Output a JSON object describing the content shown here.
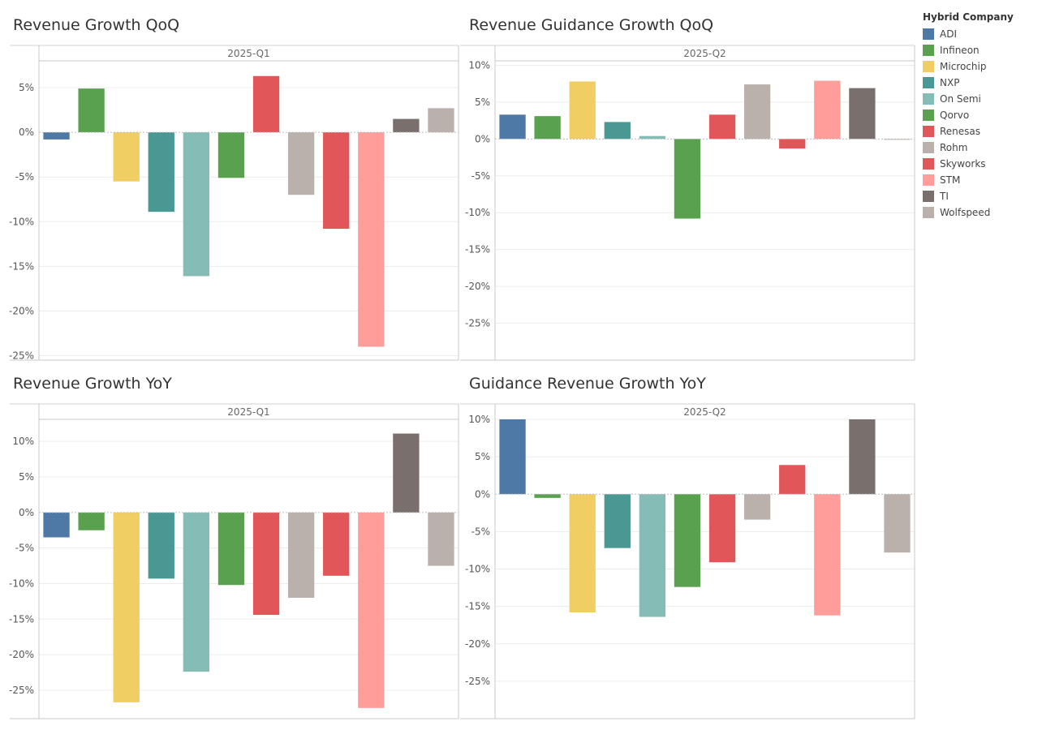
{
  "legend": {
    "title": "Hybrid Company",
    "items": [
      {
        "label": "ADI",
        "color": "#4e79a7"
      },
      {
        "label": "Infineon",
        "color": "#59a14f"
      },
      {
        "label": "Microchip",
        "color": "#f1ce63"
      },
      {
        "label": "NXP",
        "color": "#499894"
      },
      {
        "label": "On Semi",
        "color": "#86bcb6"
      },
      {
        "label": "Qorvo",
        "color": "#59a14f"
      },
      {
        "label": "Renesas",
        "color": "#e15759"
      },
      {
        "label": "Rohm",
        "color": "#bab0ac"
      },
      {
        "label": "Skyworks",
        "color": "#e15759"
      },
      {
        "label": "STM",
        "color": "#ff9d9a"
      },
      {
        "label": "TI",
        "color": "#79706e"
      },
      {
        "label": "Wolfspeed",
        "color": "#bab0ac"
      }
    ]
  },
  "chart_data": [
    {
      "type": "bar",
      "title": "Revenue Growth QoQ",
      "column_header": "2025-Q1",
      "categories": [
        "ADI",
        "Infineon",
        "Microchip",
        "NXP",
        "On Semi",
        "Qorvo",
        "Renesas",
        "Rohm",
        "Skyworks",
        "STM",
        "TI",
        "Wolfspeed"
      ],
      "values": [
        -0.8,
        4.9,
        -5.5,
        -8.9,
        -16.1,
        -5.1,
        6.3,
        -7.0,
        -10.8,
        -24.0,
        1.5,
        2.7
      ],
      "yticks": [
        5,
        0,
        -5,
        -10,
        -15,
        -20,
        -25
      ],
      "ytick_labels": [
        "5%",
        "0%",
        "-5%",
        "-10%",
        "-15%",
        "-20%",
        "-25%"
      ],
      "ylim": [
        -25.5,
        8.0
      ]
    },
    {
      "type": "bar",
      "title": "Revenue Guidance Growth QoQ",
      "column_header": "2025-Q2",
      "categories": [
        "ADI",
        "Infineon",
        "Microchip",
        "NXP",
        "On Semi",
        "Qorvo",
        "Renesas",
        "Rohm",
        "Skyworks",
        "STM",
        "TI",
        "Wolfspeed"
      ],
      "values": [
        3.3,
        3.1,
        7.8,
        2.3,
        0.4,
        -10.8,
        3.3,
        7.4,
        -1.3,
        7.9,
        6.9,
        -0.1
      ],
      "yticks": [
        10,
        5,
        0,
        -5,
        -10,
        -15,
        -20,
        -25
      ],
      "ytick_labels": [
        "10%",
        "5%",
        "0%",
        "-5%",
        "-10%",
        "-15%",
        "-20%",
        "-25%"
      ],
      "ylim": [
        -30.0,
        10.6
      ]
    },
    {
      "type": "bar",
      "title": "Revenue Growth YoY",
      "column_header": "2025-Q1",
      "categories": [
        "ADI",
        "Infineon",
        "Microchip",
        "NXP",
        "On Semi",
        "Qorvo",
        "Renesas",
        "Rohm",
        "Skyworks",
        "STM",
        "TI",
        "Wolfspeed"
      ],
      "values": [
        -3.5,
        -2.5,
        -26.7,
        -9.3,
        -22.4,
        -10.2,
        -14.4,
        -12.0,
        -8.9,
        -27.5,
        11.1,
        -7.5
      ],
      "yticks": [
        10,
        5,
        0,
        -5,
        -10,
        -15,
        -20,
        -25
      ],
      "ytick_labels": [
        "10%",
        "5%",
        "0%",
        "-5%",
        "-10%",
        "-15%",
        "-20%",
        "-25%"
      ],
      "ylim": [
        -29.0,
        13.1
      ]
    },
    {
      "type": "bar",
      "title": "Guidance Revenue Growth YoY",
      "column_header": "2025-Q2",
      "categories": [
        "ADI",
        "Infineon",
        "Microchip",
        "NXP",
        "On Semi",
        "Qorvo",
        "Renesas",
        "Rohm",
        "Skyworks",
        "STM",
        "TI",
        "Wolfspeed"
      ],
      "values": [
        10.0,
        -0.5,
        -15.8,
        -7.2,
        -16.4,
        -12.4,
        -9.1,
        -3.4,
        3.9,
        -16.2,
        10.0,
        -7.8
      ],
      "yticks": [
        10,
        5,
        0,
        -5,
        -10,
        -15,
        -20,
        -25
      ],
      "ytick_labels": [
        "10%",
        "5%",
        "0%",
        "-5%",
        "-10%",
        "-15%",
        "-20%",
        "-25%"
      ],
      "ylim": [
        -30.0,
        10.0
      ]
    }
  ]
}
